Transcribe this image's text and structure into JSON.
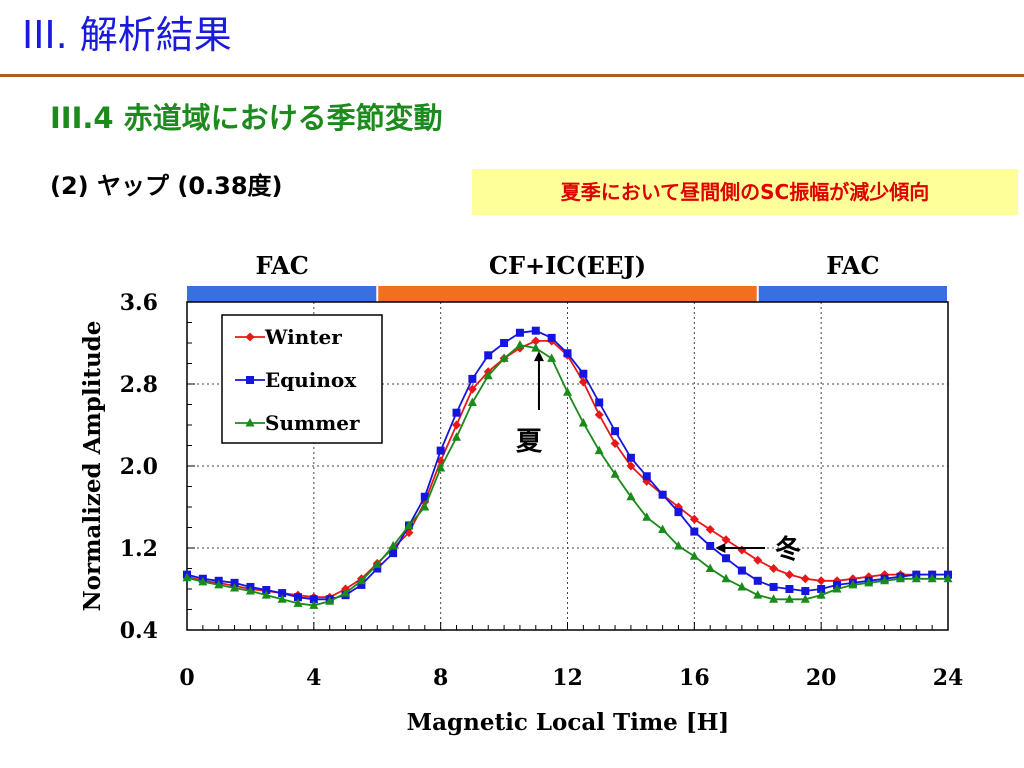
{
  "slide": {
    "title": "III. 解析結果",
    "section_heading": "III.4 赤道域における季節変動",
    "sub_heading": "(2) ヤップ (0.38度)",
    "highlight": "夏季において昼間側のSC振幅が減少傾向",
    "colors": {
      "title": "#1a1adf",
      "rule": "#b35a1f",
      "heading": "#1c8a1c",
      "highlight_bg": "#ffff99",
      "highlight_text": "#e00000"
    }
  },
  "chart_data": {
    "type": "line",
    "xlabel": "Magnetic Local Time [H]",
    "ylabel": "Normalized Amplitude",
    "xlim": [
      0,
      24
    ],
    "ylim": [
      0.4,
      3.6
    ],
    "x_ticks": [
      "0",
      "4",
      "8",
      "12",
      "16",
      "20",
      "24"
    ],
    "y_ticks": [
      "0.4",
      "1.2",
      "2.0",
      "2.8",
      "3.6"
    ],
    "grid": "dotted",
    "legend_position": "top-left",
    "regions": [
      {
        "label": "FAC",
        "from": 0,
        "to": 6,
        "color": "#3a6fe0"
      },
      {
        "label": "CF+IC(EEJ)",
        "from": 6,
        "to": 18,
        "color": "#f07020"
      },
      {
        "label": "FAC",
        "from": 18,
        "to": 24,
        "color": "#3a6fe0"
      }
    ],
    "annotations": [
      {
        "text": "夏",
        "x": 11.1,
        "y": 3.15,
        "direction": "up"
      },
      {
        "text": "冬",
        "x": 16.6,
        "y": 1.2,
        "direction": "left"
      }
    ],
    "x": [
      0,
      0.5,
      1,
      1.5,
      2,
      2.5,
      3,
      3.5,
      4,
      4.5,
      5,
      5.5,
      6,
      6.5,
      7,
      7.5,
      8,
      8.5,
      9,
      9.5,
      10,
      10.5,
      11,
      11.5,
      12,
      12.5,
      13,
      13.5,
      14,
      14.5,
      15,
      15.5,
      16,
      16.5,
      17,
      17.5,
      18,
      18.5,
      19,
      19.5,
      20,
      20.5,
      21,
      21.5,
      22,
      22.5,
      23,
      23.5,
      24
    ],
    "series": [
      {
        "name": "Winter",
        "color": "#e81818",
        "marker": "diamond",
        "values": [
          0.92,
          0.88,
          0.86,
          0.83,
          0.8,
          0.78,
          0.76,
          0.74,
          0.72,
          0.72,
          0.8,
          0.9,
          1.05,
          1.2,
          1.35,
          1.65,
          2.05,
          2.4,
          2.75,
          2.92,
          3.05,
          3.15,
          3.22,
          3.22,
          3.08,
          2.82,
          2.5,
          2.22,
          2.0,
          1.85,
          1.72,
          1.6,
          1.48,
          1.38,
          1.28,
          1.18,
          1.08,
          1.0,
          0.94,
          0.9,
          0.88,
          0.88,
          0.9,
          0.92,
          0.94,
          0.94,
          0.94,
          0.94,
          0.94
        ]
      },
      {
        "name": "Equinox",
        "color": "#1515e0",
        "marker": "square",
        "values": [
          0.94,
          0.9,
          0.88,
          0.86,
          0.82,
          0.79,
          0.76,
          0.72,
          0.7,
          0.7,
          0.74,
          0.84,
          1.0,
          1.15,
          1.42,
          1.7,
          2.15,
          2.52,
          2.85,
          3.08,
          3.2,
          3.3,
          3.32,
          3.25,
          3.1,
          2.9,
          2.62,
          2.34,
          2.08,
          1.9,
          1.72,
          1.55,
          1.36,
          1.22,
          1.1,
          0.98,
          0.88,
          0.82,
          0.8,
          0.78,
          0.8,
          0.84,
          0.86,
          0.88,
          0.9,
          0.92,
          0.94,
          0.94,
          0.94
        ]
      },
      {
        "name": "Summer",
        "color": "#1a8a1a",
        "marker": "triangle",
        "values": [
          0.91,
          0.87,
          0.84,
          0.81,
          0.78,
          0.74,
          0.7,
          0.66,
          0.64,
          0.68,
          0.76,
          0.88,
          1.04,
          1.22,
          1.42,
          1.6,
          1.98,
          2.28,
          2.62,
          2.88,
          3.05,
          3.18,
          3.15,
          3.05,
          2.72,
          2.42,
          2.15,
          1.92,
          1.7,
          1.5,
          1.38,
          1.22,
          1.12,
          1.0,
          0.9,
          0.82,
          0.74,
          0.7,
          0.7,
          0.7,
          0.74,
          0.8,
          0.84,
          0.86,
          0.88,
          0.9,
          0.9,
          0.9,
          0.9
        ]
      }
    ]
  }
}
